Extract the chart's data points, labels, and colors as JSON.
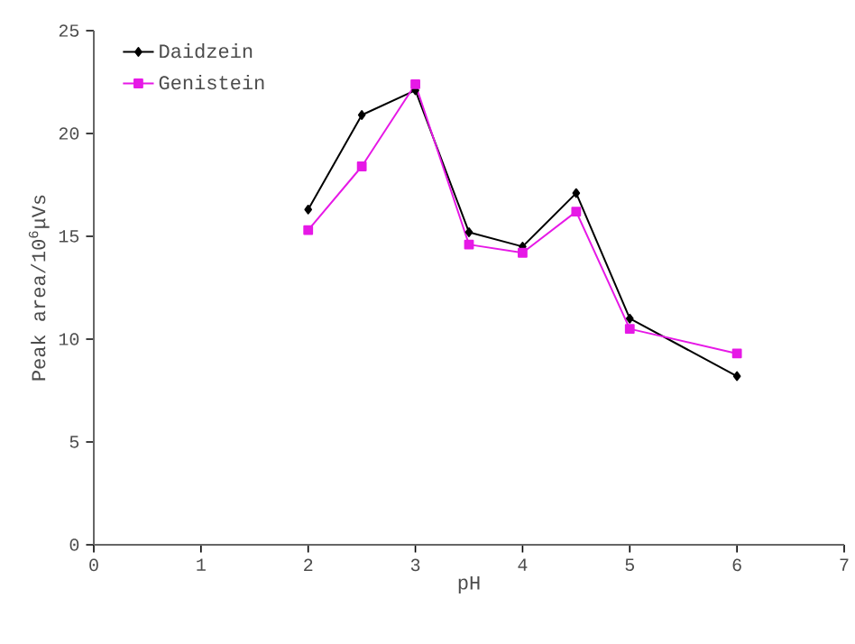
{
  "chart_data": {
    "type": "line",
    "xlabel": "pH",
    "ylabel": "Peak area/10$^{6}$μVs",
    "x": [
      2,
      2.5,
      3,
      3.5,
      4,
      4.5,
      5,
      6
    ],
    "series": [
      {
        "name": "Daidzein",
        "color": "#000000",
        "marker": "diamond",
        "values": [
          16.3,
          20.9,
          22.1,
          15.2,
          14.5,
          17.1,
          11.0,
          8.2
        ]
      },
      {
        "name": "Genistein",
        "color": "#e619e6",
        "marker": "square",
        "values": [
          15.3,
          18.4,
          22.4,
          14.6,
          14.2,
          16.2,
          10.5,
          9.3
        ]
      }
    ],
    "xlim": [
      0,
      7
    ],
    "xticks": [
      0,
      1,
      2,
      3,
      4,
      5,
      6,
      7
    ],
    "ylim": [
      0,
      25
    ],
    "yticks": [
      0,
      5,
      10,
      15,
      20,
      25
    ],
    "legend": "top left",
    "grid": false,
    "line_style": "solid"
  }
}
